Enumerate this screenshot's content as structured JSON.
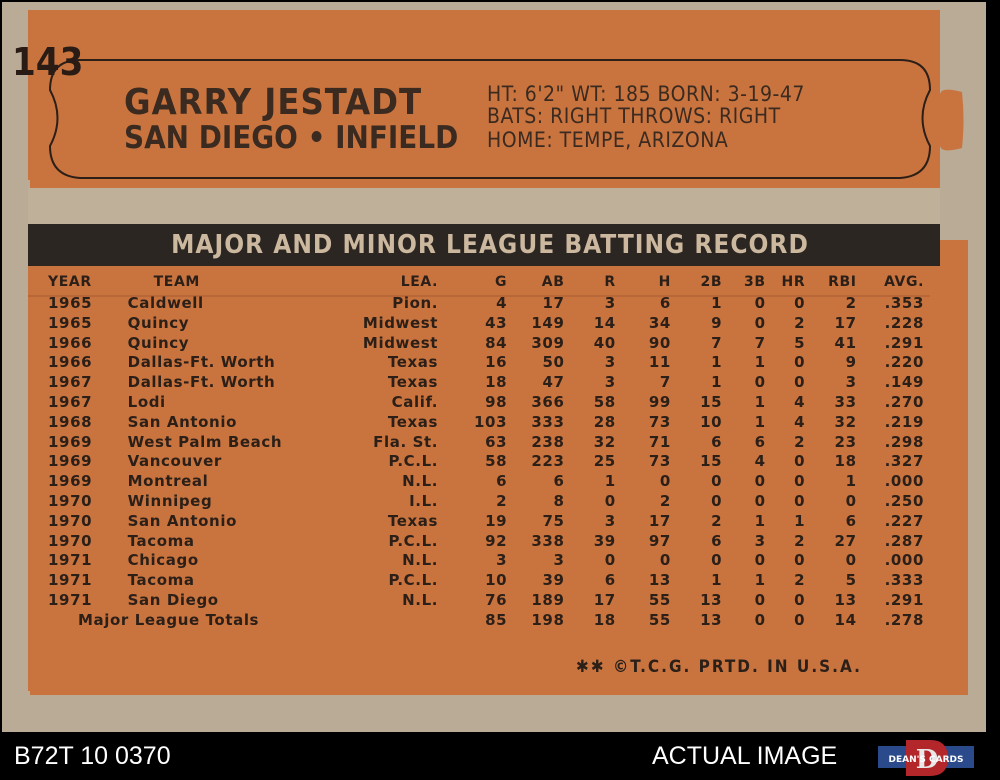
{
  "colors": {
    "card_stock": "#b9ab96",
    "orange_panel": "#c9743f",
    "banner_dark": "#2c2623",
    "banner_text": "#cbb89e",
    "ink": "#2b1f18"
  },
  "card": {
    "number": "143",
    "player_name": "GARRY JESTADT",
    "team_position": "SAN DIEGO • INFIELD",
    "bio_line1": "HT: 6'2\"   WT: 185  BORN: 3-19-47",
    "bio_line2": "BATS: RIGHT      THROWS: RIGHT",
    "bio_line3": "HOME: TEMPE, ARIZONA",
    "banner_title": "MAJOR AND MINOR LEAGUE BATTING RECORD",
    "footer": "✱✱ ©T.C.G. PRTD. IN U.S.A."
  },
  "stats": {
    "headers": {
      "year": "YEAR",
      "team": "TEAM",
      "lea": "LEA.",
      "g": "G",
      "ab": "AB",
      "r": "R",
      "h": "H",
      "2b": "2B",
      "3b": "3B",
      "hr": "HR",
      "rbi": "RBI",
      "avg": "AVG."
    },
    "rows": [
      [
        "1965",
        "Caldwell",
        "Pion.",
        "4",
        "17",
        "3",
        "6",
        "1",
        "0",
        "0",
        "2",
        ".353"
      ],
      [
        "1965",
        "Quincy",
        "Midwest",
        "43",
        "149",
        "14",
        "34",
        "9",
        "0",
        "2",
        "17",
        ".228"
      ],
      [
        "1966",
        "Quincy",
        "Midwest",
        "84",
        "309",
        "40",
        "90",
        "7",
        "7",
        "5",
        "41",
        ".291"
      ],
      [
        "1966",
        "Dallas-Ft. Worth",
        "Texas",
        "16",
        "50",
        "3",
        "11",
        "1",
        "1",
        "0",
        "9",
        ".220"
      ],
      [
        "1967",
        "Dallas-Ft. Worth",
        "Texas",
        "18",
        "47",
        "3",
        "7",
        "1",
        "0",
        "0",
        "3",
        ".149"
      ],
      [
        "1967",
        "Lodi",
        "Calif.",
        "98",
        "366",
        "58",
        "99",
        "15",
        "1",
        "4",
        "33",
        ".270"
      ],
      [
        "1968",
        "San Antonio",
        "Texas",
        "103",
        "333",
        "28",
        "73",
        "10",
        "1",
        "4",
        "32",
        ".219"
      ],
      [
        "1969",
        "West Palm Beach",
        "Fla. St.",
        "63",
        "238",
        "32",
        "71",
        "6",
        "6",
        "2",
        "23",
        ".298"
      ],
      [
        "1969",
        "Vancouver",
        "P.C.L.",
        "58",
        "223",
        "25",
        "73",
        "15",
        "4",
        "0",
        "18",
        ".327"
      ],
      [
        "1969",
        "Montreal",
        "N.L.",
        "6",
        "6",
        "1",
        "0",
        "0",
        "0",
        "0",
        "1",
        ".000"
      ],
      [
        "1970",
        "Winnipeg",
        "I.L.",
        "2",
        "8",
        "0",
        "2",
        "0",
        "0",
        "0",
        "0",
        ".250"
      ],
      [
        "1970",
        "San Antonio",
        "Texas",
        "19",
        "75",
        "3",
        "17",
        "2",
        "1",
        "1",
        "6",
        ".227"
      ],
      [
        "1970",
        "Tacoma",
        "P.C.L.",
        "92",
        "338",
        "39",
        "97",
        "6",
        "3",
        "2",
        "27",
        ".287"
      ],
      [
        "1971",
        "Chicago",
        "N.L.",
        "3",
        "3",
        "0",
        "0",
        "0",
        "0",
        "0",
        "0",
        ".000"
      ],
      [
        "1971",
        "Tacoma",
        "P.C.L.",
        "10",
        "39",
        "6",
        "13",
        "1",
        "1",
        "2",
        "5",
        ".333"
      ],
      [
        "1971",
        "San Diego",
        "N.L.",
        "76",
        "189",
        "17",
        "55",
        "13",
        "0",
        "0",
        "13",
        ".291"
      ]
    ],
    "totals": {
      "label": "Major League Totals",
      "values": [
        "85",
        "198",
        "18",
        "55",
        "13",
        "0",
        "0",
        "14",
        ".278"
      ]
    }
  },
  "scan_labels": {
    "left": "B72T 10 0370",
    "right": "ACTUAL IMAGE",
    "logo_text": "DEAN'S CARDS",
    "logo_letter": "D"
  }
}
